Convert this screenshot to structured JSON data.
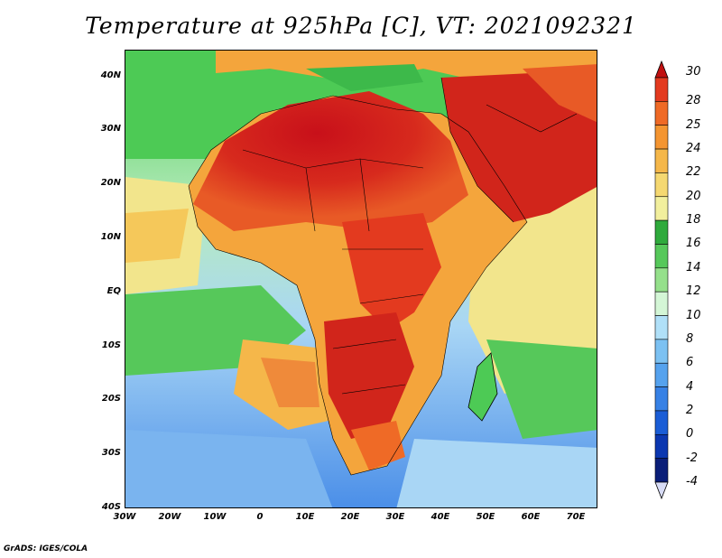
{
  "title": "Temperature at 925hPa [C], VT: 2021092321",
  "credit": "GrADS: IGES/COLA",
  "map": {
    "lat_ticks": [
      "40N",
      "30N",
      "20N",
      "10N",
      "EQ",
      "10S",
      "20S",
      "30S",
      "40S"
    ],
    "lon_ticks": [
      "30W",
      "20W",
      "10W",
      "0",
      "10E",
      "20E",
      "30E",
      "40E",
      "50E",
      "60E",
      "70E"
    ],
    "lon_range": [
      -30,
      75
    ],
    "lat_range": [
      -40,
      45
    ],
    "colors": {
      "ocean_cool": "#7ab4ef",
      "ocean_mild": "#a9d6f5",
      "ocean_pale": "#d8f1e8",
      "ocean_green": "#4dca55",
      "ocean_yellow": "#f2e58c",
      "land_warm": "#f4a53c",
      "land_hot": "#e3502a",
      "land_hottest": "#d1251b",
      "med_green": "#3db94a"
    }
  },
  "colorbar": {
    "labels": [
      "30",
      "28",
      "25",
      "24",
      "22",
      "20",
      "18",
      "16",
      "14",
      "12",
      "10",
      "8",
      "6",
      "4",
      "2",
      "0",
      "-2",
      "-4"
    ],
    "colors": [
      "#c8101a",
      "#e33a1f",
      "#ef6a26",
      "#f49531",
      "#f5b74a",
      "#f5d871",
      "#f2ef9d",
      "#2faa3c",
      "#56c85a",
      "#95e08b",
      "#d4f6d6",
      "#b0e0f8",
      "#7cc1f2",
      "#55a2ee",
      "#3781e5",
      "#1a5dd6",
      "#0b37b0",
      "#0a1e78"
    ],
    "top_arrow_color": "#c01010",
    "bottom_arrow_color": "#d8dcf6"
  }
}
